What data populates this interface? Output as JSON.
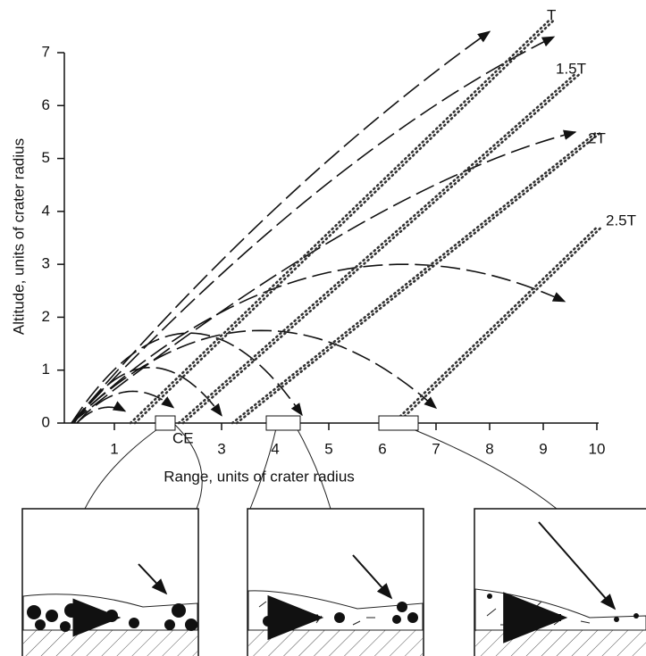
{
  "chart_data": {
    "type": "trajectory",
    "xlabel": "Range, units of crater radius",
    "ylabel": "Altitude, units of crater radius",
    "xlim": [
      0,
      10
    ],
    "ylim": [
      0,
      7
    ],
    "xticks": [
      1,
      3,
      4,
      5,
      6,
      7,
      8,
      9,
      10
    ],
    "yticks": [
      0,
      1,
      2,
      3,
      4,
      5,
      6,
      7
    ],
    "annotations": [
      "T",
      "1.5T",
      "2T",
      "2.5T",
      "CE"
    ]
  }
}
